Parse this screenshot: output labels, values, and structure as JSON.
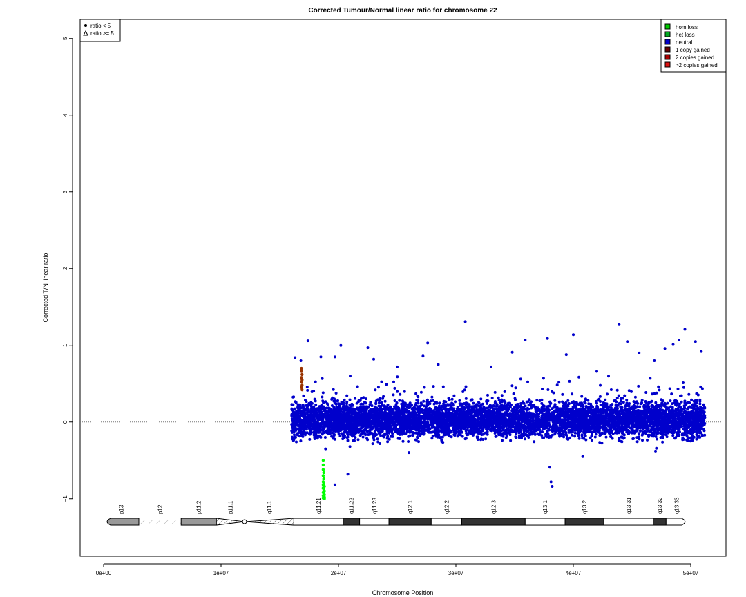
{
  "chart_data": {
    "type": "scatter",
    "title": "Corrected Tumour/Normal linear ratio for chromosome  22",
    "xlabel": "Chromosome Position",
    "ylabel": "Corrected T/N linear ratio",
    "xlim": [
      -2000000,
      53000000
    ],
    "ylim": [
      -1.75,
      5.25
    ],
    "x_ticks": [
      {
        "value": 0,
        "label": "0e+00"
      },
      {
        "value": 10000000,
        "label": "1e+07"
      },
      {
        "value": 20000000,
        "label": "2e+07"
      },
      {
        "value": 30000000,
        "label": "3e+07"
      },
      {
        "value": 40000000,
        "label": "4e+07"
      },
      {
        "value": 50000000,
        "label": "5e+07"
      }
    ],
    "y_ticks": [
      {
        "value": -1,
        "label": "−1"
      },
      {
        "value": 0,
        "label": "0"
      },
      {
        "value": 1,
        "label": "1"
      },
      {
        "value": 2,
        "label": "2"
      },
      {
        "value": 3,
        "label": "3"
      },
      {
        "value": 4,
        "label": "4"
      },
      {
        "value": 5,
        "label": "5"
      }
    ],
    "reference_line": {
      "y": 0,
      "style": "dotted"
    },
    "series": [
      {
        "name": "neutral",
        "color": "#0000cc",
        "region": [
          16000000,
          51200000
        ],
        "core_range": [
          -0.3,
          0.35
        ],
        "outliers": [
          [
            16800000,
            0.8
          ],
          [
            16300000,
            0.84
          ],
          [
            17400000,
            1.06
          ],
          [
            18500000,
            0.85
          ],
          [
            19700000,
            0.85
          ],
          [
            20200000,
            1.0
          ],
          [
            21000000,
            0.6
          ],
          [
            22500000,
            0.97
          ],
          [
            23000000,
            0.82
          ],
          [
            25000000,
            0.72
          ],
          [
            27200000,
            0.86
          ],
          [
            27600000,
            1.03
          ],
          [
            28500000,
            0.75
          ],
          [
            30800000,
            1.31
          ],
          [
            33000000,
            0.72
          ],
          [
            34800000,
            0.91
          ],
          [
            35900000,
            1.07
          ],
          [
            37800000,
            1.09
          ],
          [
            39400000,
            0.88
          ],
          [
            40000000,
            1.14
          ],
          [
            42000000,
            0.66
          ],
          [
            43900000,
            1.27
          ],
          [
            44600000,
            1.05
          ],
          [
            45600000,
            0.9
          ],
          [
            46900000,
            0.8
          ],
          [
            47800000,
            0.96
          ],
          [
            48500000,
            1.01
          ],
          [
            49000000,
            1.07
          ],
          [
            49500000,
            1.21
          ],
          [
            50400000,
            1.05
          ],
          [
            50900000,
            0.92
          ],
          [
            18900000,
            -0.35
          ],
          [
            19700000,
            -0.82
          ],
          [
            20800000,
            -0.68
          ],
          [
            38100000,
            -0.78
          ],
          [
            38200000,
            -0.84
          ],
          [
            38000000,
            -0.59
          ],
          [
            40800000,
            -0.45
          ],
          [
            26000000,
            -0.4
          ],
          [
            47000000,
            -0.38
          ]
        ]
      },
      {
        "name": "hom loss",
        "color": "#00ff00",
        "points": [
          [
            18700000,
            -0.5
          ],
          [
            18700000,
            -0.56
          ],
          [
            18700000,
            -0.62
          ],
          [
            18750000,
            -0.66
          ],
          [
            18700000,
            -0.7
          ],
          [
            18750000,
            -0.74
          ],
          [
            18700000,
            -0.78
          ],
          [
            18750000,
            -0.8
          ],
          [
            18700000,
            -0.82
          ],
          [
            18800000,
            -0.84
          ],
          [
            18700000,
            -0.86
          ],
          [
            18750000,
            -0.88
          ],
          [
            18800000,
            -0.9
          ],
          [
            18700000,
            -0.92
          ],
          [
            18750000,
            -0.93
          ],
          [
            18800000,
            -0.95
          ],
          [
            18700000,
            -0.96
          ],
          [
            18750000,
            -0.97
          ],
          [
            18800000,
            -0.98
          ],
          [
            18700000,
            -0.99
          ],
          [
            18800000,
            -1.0
          ]
        ]
      },
      {
        "name": "1 copy gained",
        "color": "#993300",
        "points": [
          [
            16850000,
            0.7
          ],
          [
            16850000,
            0.66
          ],
          [
            16900000,
            0.62
          ],
          [
            16850000,
            0.58
          ],
          [
            16900000,
            0.55
          ],
          [
            16850000,
            0.52
          ],
          [
            16900000,
            0.48
          ],
          [
            16850000,
            0.45
          ],
          [
            16900000,
            0.42
          ]
        ]
      }
    ],
    "legends": {
      "markers": {
        "placement": "top-left",
        "items": [
          {
            "label": "ratio < 5",
            "symbol": "circle"
          },
          {
            "label": "ratio >= 5",
            "symbol": "triangle"
          }
        ]
      },
      "categories": {
        "placement": "top-right",
        "items": [
          {
            "label": "hom loss",
            "color": "#00cc00"
          },
          {
            "label": "het loss",
            "color": "#00aa22"
          },
          {
            "label": "neutral",
            "color": "#0000cc"
          },
          {
            "label": "1 copy gained",
            "color": "#660000"
          },
          {
            "label": "2 copies gained",
            "color": "#aa0000"
          },
          {
            "label": ">2 copies gained",
            "color": "#dd1111"
          }
        ]
      }
    },
    "ideogram": {
      "y": -1.3,
      "centromere": 12000000,
      "bands": [
        {
          "name": "p13",
          "start": 0,
          "end": 3000000,
          "stain": "gvar"
        },
        {
          "name": "p12",
          "start": 3000000,
          "end": 6600000,
          "stain": "stalk"
        },
        {
          "name": "p11.2",
          "start": 6600000,
          "end": 9600000,
          "stain": "gvar"
        },
        {
          "name": "p11.1",
          "start": 9600000,
          "end": 12000000,
          "stain": "acen"
        },
        {
          "name": "q11.1",
          "start": 12000000,
          "end": 16200000,
          "stain": "acen"
        },
        {
          "name": "q11.21",
          "start": 16200000,
          "end": 20400000,
          "stain": "gneg"
        },
        {
          "name": "q11.22",
          "start": 20400000,
          "end": 21800000,
          "stain": "gpos"
        },
        {
          "name": "q11.23",
          "start": 21800000,
          "end": 24300000,
          "stain": "gneg"
        },
        {
          "name": "q12.1",
          "start": 24300000,
          "end": 27900000,
          "stain": "gpos"
        },
        {
          "name": "q12.2",
          "start": 27900000,
          "end": 30500000,
          "stain": "gneg"
        },
        {
          "name": "q12.3",
          "start": 30500000,
          "end": 35900000,
          "stain": "gpos"
        },
        {
          "name": "q13.1",
          "start": 35900000,
          "end": 39300000,
          "stain": "gneg"
        },
        {
          "name": "q13.2",
          "start": 39300000,
          "end": 42600000,
          "stain": "gpos"
        },
        {
          "name": "q13.31",
          "start": 42600000,
          "end": 46800000,
          "stain": "gneg"
        },
        {
          "name": "q13.32",
          "start": 46800000,
          "end": 47900000,
          "stain": "gpos"
        },
        {
          "name": "q13.33",
          "start": 47900000,
          "end": 49700000,
          "stain": "gneg"
        }
      ]
    }
  }
}
